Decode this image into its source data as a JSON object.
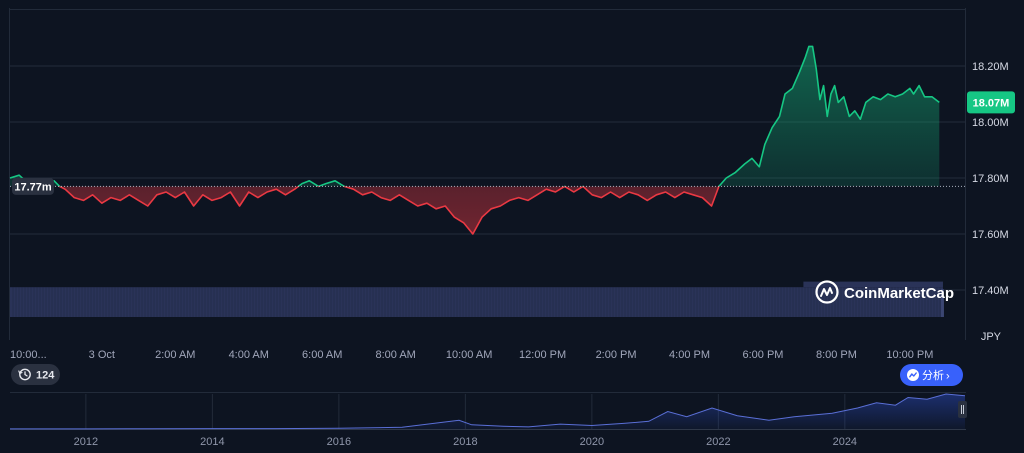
{
  "brand": {
    "watermark": "CoinMarketCap"
  },
  "colors": {
    "background": "#0d1421",
    "grid": "#222b3a",
    "up": "#16c784",
    "down": "#ea3943",
    "volume": "#2a3358",
    "navigator_line": "#5a6fd6",
    "accent_button": "#3861fb"
  },
  "controls": {
    "history_count": "124",
    "analyze_label": "分析",
    "analyze_chevron": "›"
  },
  "chart_data": {
    "type": "line",
    "currency": "JPY",
    "baseline_label": "17.77m",
    "current_label": "18.07M",
    "baseline_value": 17.77,
    "current_value": 18.07,
    "y_unit": "M",
    "ylim": [
      17.4,
      18.4
    ],
    "yticks": [
      {
        "value": 18.2,
        "label": "18.20M"
      },
      {
        "value": 18.0,
        "label": "18.00M"
      },
      {
        "value": 17.8,
        "label": "17.80M"
      },
      {
        "value": 17.6,
        "label": "17.60M"
      },
      {
        "value": 17.4,
        "label": "17.40M"
      }
    ],
    "xlim": [
      0,
      26
    ],
    "xticks": [
      {
        "hour": 0.5,
        "label": "10:00..."
      },
      {
        "hour": 2.5,
        "label": "3 Oct"
      },
      {
        "hour": 4.5,
        "label": "2:00 AM"
      },
      {
        "hour": 6.5,
        "label": "4:00 AM"
      },
      {
        "hour": 8.5,
        "label": "6:00 AM"
      },
      {
        "hour": 10.5,
        "label": "8:00 AM"
      },
      {
        "hour": 12.5,
        "label": "10:00 AM"
      },
      {
        "hour": 14.5,
        "label": "12:00 PM"
      },
      {
        "hour": 16.5,
        "label": "2:00 PM"
      },
      {
        "hour": 18.5,
        "label": "4:00 PM"
      },
      {
        "hour": 20.5,
        "label": "6:00 PM"
      },
      {
        "hour": 22.5,
        "label": "8:00 PM"
      },
      {
        "hour": 24.5,
        "label": "10:00 PM"
      }
    ],
    "series": [
      {
        "points": [
          [
            0,
            17.8
          ],
          [
            0.25,
            17.81
          ],
          [
            0.5,
            17.78
          ],
          [
            0.75,
            17.77
          ],
          [
            1.0,
            17.78
          ],
          [
            1.2,
            17.79
          ],
          [
            1.35,
            17.77
          ],
          [
            1.5,
            17.76
          ],
          [
            1.75,
            17.73
          ],
          [
            2.0,
            17.72
          ],
          [
            2.25,
            17.74
          ],
          [
            2.5,
            17.71
          ],
          [
            2.75,
            17.73
          ],
          [
            3.0,
            17.72
          ],
          [
            3.25,
            17.74
          ],
          [
            3.5,
            17.72
          ],
          [
            3.75,
            17.7
          ],
          [
            4.0,
            17.74
          ],
          [
            4.25,
            17.75
          ],
          [
            4.5,
            17.73
          ],
          [
            4.75,
            17.75
          ],
          [
            5.0,
            17.7
          ],
          [
            5.25,
            17.74
          ],
          [
            5.5,
            17.72
          ],
          [
            5.75,
            17.73
          ],
          [
            6.0,
            17.75
          ],
          [
            6.25,
            17.7
          ],
          [
            6.5,
            17.75
          ],
          [
            6.75,
            17.73
          ],
          [
            7.0,
            17.75
          ],
          [
            7.25,
            17.76
          ],
          [
            7.5,
            17.74
          ],
          [
            7.75,
            17.76
          ],
          [
            7.95,
            17.78
          ],
          [
            8.15,
            17.79
          ],
          [
            8.4,
            17.77
          ],
          [
            8.6,
            17.78
          ],
          [
            8.85,
            17.79
          ],
          [
            9.1,
            17.77
          ],
          [
            9.35,
            17.76
          ],
          [
            9.6,
            17.74
          ],
          [
            9.85,
            17.75
          ],
          [
            10.1,
            17.73
          ],
          [
            10.35,
            17.72
          ],
          [
            10.6,
            17.74
          ],
          [
            10.85,
            17.72
          ],
          [
            11.1,
            17.7
          ],
          [
            11.35,
            17.71
          ],
          [
            11.6,
            17.69
          ],
          [
            11.85,
            17.7
          ],
          [
            12.1,
            17.66
          ],
          [
            12.35,
            17.64
          ],
          [
            12.6,
            17.6
          ],
          [
            12.85,
            17.66
          ],
          [
            13.1,
            17.69
          ],
          [
            13.35,
            17.7
          ],
          [
            13.6,
            17.72
          ],
          [
            13.85,
            17.73
          ],
          [
            14.1,
            17.72
          ],
          [
            14.35,
            17.74
          ],
          [
            14.6,
            17.76
          ],
          [
            14.85,
            17.75
          ],
          [
            15.1,
            17.77
          ],
          [
            15.35,
            17.75
          ],
          [
            15.6,
            17.77
          ],
          [
            15.85,
            17.74
          ],
          [
            16.1,
            17.73
          ],
          [
            16.35,
            17.75
          ],
          [
            16.6,
            17.73
          ],
          [
            16.85,
            17.75
          ],
          [
            17.1,
            17.74
          ],
          [
            17.35,
            17.72
          ],
          [
            17.6,
            17.74
          ],
          [
            17.85,
            17.75
          ],
          [
            18.1,
            17.73
          ],
          [
            18.35,
            17.75
          ],
          [
            18.6,
            17.74
          ],
          [
            18.85,
            17.73
          ],
          [
            19.1,
            17.7
          ],
          [
            19.3,
            17.77
          ],
          [
            19.5,
            17.8
          ],
          [
            19.75,
            17.82
          ],
          [
            20.0,
            17.85
          ],
          [
            20.2,
            17.87
          ],
          [
            20.4,
            17.84
          ],
          [
            20.55,
            17.92
          ],
          [
            20.75,
            17.98
          ],
          [
            20.95,
            18.02
          ],
          [
            21.1,
            18.1
          ],
          [
            21.3,
            18.12
          ],
          [
            21.5,
            18.18
          ],
          [
            21.65,
            18.23
          ],
          [
            21.75,
            18.27
          ],
          [
            21.85,
            18.27
          ],
          [
            21.95,
            18.19
          ],
          [
            22.05,
            18.08
          ],
          [
            22.15,
            18.13
          ],
          [
            22.25,
            18.02
          ],
          [
            22.35,
            18.1
          ],
          [
            22.45,
            18.13
          ],
          [
            22.55,
            18.07
          ],
          [
            22.7,
            18.09
          ],
          [
            22.85,
            18.02
          ],
          [
            23.0,
            18.04
          ],
          [
            23.15,
            18.01
          ],
          [
            23.3,
            18.07
          ],
          [
            23.5,
            18.09
          ],
          [
            23.7,
            18.08
          ],
          [
            23.9,
            18.1
          ],
          [
            24.1,
            18.09
          ],
          [
            24.3,
            18.1
          ],
          [
            24.5,
            18.12
          ],
          [
            24.6,
            18.1
          ],
          [
            24.75,
            18.13
          ],
          [
            24.9,
            18.09
          ],
          [
            25.1,
            18.09
          ],
          [
            25.3,
            18.07
          ]
        ]
      }
    ],
    "volume": {
      "start_hour": 0,
      "end_hour": 25.4,
      "level": 17.41,
      "peak_level": 17.43,
      "peak_start_hour": 21.6
    },
    "navigator": {
      "type": "area",
      "x_labels": [
        "2012",
        "2014",
        "2016",
        "2018",
        "2020",
        "2022",
        "2024"
      ],
      "x_years": [
        2012,
        2014,
        2016,
        2018,
        2020,
        2022,
        2024
      ],
      "xlim": [
        2010.8,
        2025.9
      ],
      "points": [
        [
          2010.8,
          0.004
        ],
        [
          2012,
          0.005
        ],
        [
          2013,
          0.008
        ],
        [
          2014,
          0.01
        ],
        [
          2015,
          0.012
        ],
        [
          2016,
          0.02
        ],
        [
          2017,
          0.05
        ],
        [
          2017.9,
          0.25
        ],
        [
          2018.1,
          0.12
        ],
        [
          2018.6,
          0.08
        ],
        [
          2019,
          0.06
        ],
        [
          2019.5,
          0.14
        ],
        [
          2020,
          0.1
        ],
        [
          2020.5,
          0.16
        ],
        [
          2020.9,
          0.22
        ],
        [
          2021.2,
          0.5
        ],
        [
          2021.5,
          0.35
        ],
        [
          2021.9,
          0.6
        ],
        [
          2022.3,
          0.38
        ],
        [
          2022.8,
          0.25
        ],
        [
          2023.2,
          0.35
        ],
        [
          2023.8,
          0.45
        ],
        [
          2024.2,
          0.6
        ],
        [
          2024.5,
          0.75
        ],
        [
          2024.8,
          0.68
        ],
        [
          2025.0,
          0.9
        ],
        [
          2025.3,
          0.85
        ],
        [
          2025.6,
          1.0
        ],
        [
          2025.9,
          0.95
        ]
      ]
    }
  }
}
